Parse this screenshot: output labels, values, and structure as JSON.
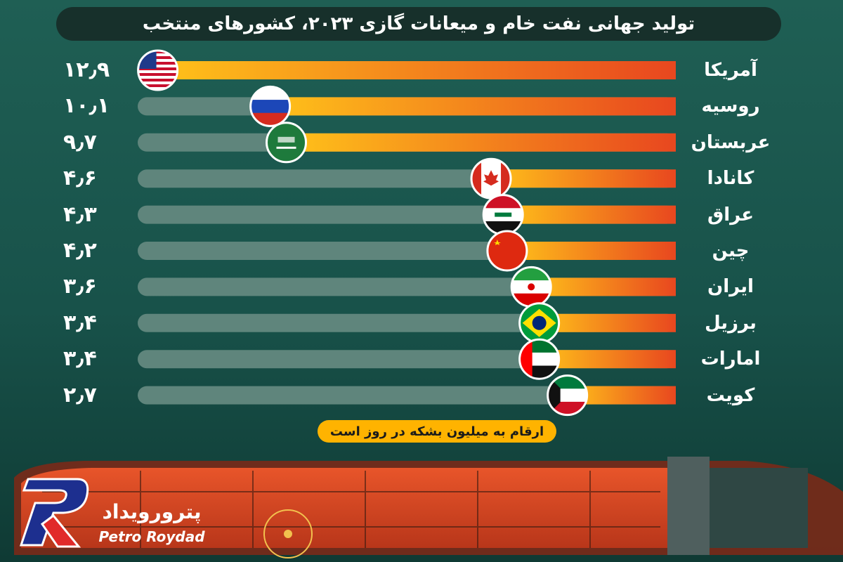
{
  "header": {
    "title": "تولید جهانی نفت خام و میعانات گازی ۲۰۲۳، کشورهای منتخب"
  },
  "footer_note": "ارقام به میلیون بشکه در روز است",
  "brand": {
    "name_fa": "پترورویداد",
    "name_en": "Petro Roydad"
  },
  "colors": {
    "background": "#1f5f54",
    "track": "#5f857c",
    "bar_start": "#ffc21a",
    "bar_end": "#e8471f",
    "note_bg": "#ffb300",
    "logo_blue": "#1d2f8f",
    "logo_red": "#e12a2a"
  },
  "chart_data": {
    "type": "bar",
    "orientation": "horizontal",
    "title": "تولید جهانی نفت خام و میعانات گازی ۲۰۲۳، کشورهای منتخب",
    "categories": [
      "آمریکا",
      "روسیه",
      "عربستان",
      "کانادا",
      "عراق",
      "چین",
      "ایران",
      "برزیل",
      "امارات",
      "کویت"
    ],
    "values": [
      12.9,
      10.1,
      9.7,
      4.6,
      4.3,
      4.2,
      3.6,
      3.4,
      3.4,
      2.7
    ],
    "value_labels": [
      "۱۲٫۹",
      "۱۰٫۱",
      "۹٫۷",
      "۴٫۶",
      "۴٫۳",
      "۴٫۲",
      "۳٫۶",
      "۳٫۴",
      "۳٫۴",
      "۲٫۷"
    ],
    "flags": [
      "usa-flag",
      "russia-flag",
      "saudi-flag",
      "canada-flag",
      "iraq-flag",
      "china-flag",
      "iran-flag",
      "brazil-flag",
      "uae-flag",
      "kuwait-flag"
    ],
    "unit": "ارقام به میلیون بشکه در روز است",
    "xlim": [
      0,
      13.4
    ],
    "bars_grow_from": "right"
  }
}
